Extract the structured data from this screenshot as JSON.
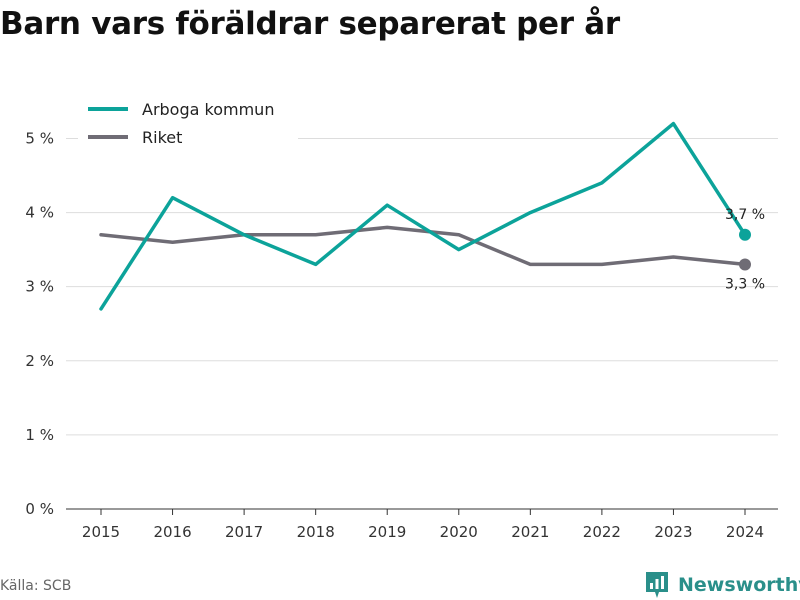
{
  "title": "Barn vars föräldrar separerat per år",
  "source": "Källa: SCB",
  "brand": {
    "name": "Newsworthy",
    "color": "#2a8f8a"
  },
  "chart_data": {
    "type": "line",
    "title": "Barn vars föräldrar separerat per år",
    "x": [
      "2015",
      "2016",
      "2017",
      "2018",
      "2019",
      "2020",
      "2021",
      "2022",
      "2023",
      "2024"
    ],
    "series": [
      {
        "name": "Arboga kommun",
        "color": "#0ca39a",
        "values": [
          2.7,
          4.2,
          3.7,
          3.3,
          4.1,
          3.5,
          4.0,
          4.4,
          5.2,
          3.7
        ],
        "end_label": "3,7 %"
      },
      {
        "name": "Riket",
        "color": "#6f6c75",
        "values": [
          3.7,
          3.6,
          3.7,
          3.7,
          3.8,
          3.7,
          3.3,
          3.3,
          3.4,
          3.3
        ],
        "end_label": "3,3 %"
      }
    ],
    "yticks": [
      0,
      1,
      2,
      3,
      4,
      5
    ],
    "ytick_labels": [
      "0 %",
      "1 %",
      "2 %",
      "3 %",
      "4 %",
      "5 %"
    ],
    "ylim": [
      0,
      5.6
    ],
    "grid": true,
    "legend": "top-left",
    "xlabel": "",
    "ylabel": ""
  }
}
